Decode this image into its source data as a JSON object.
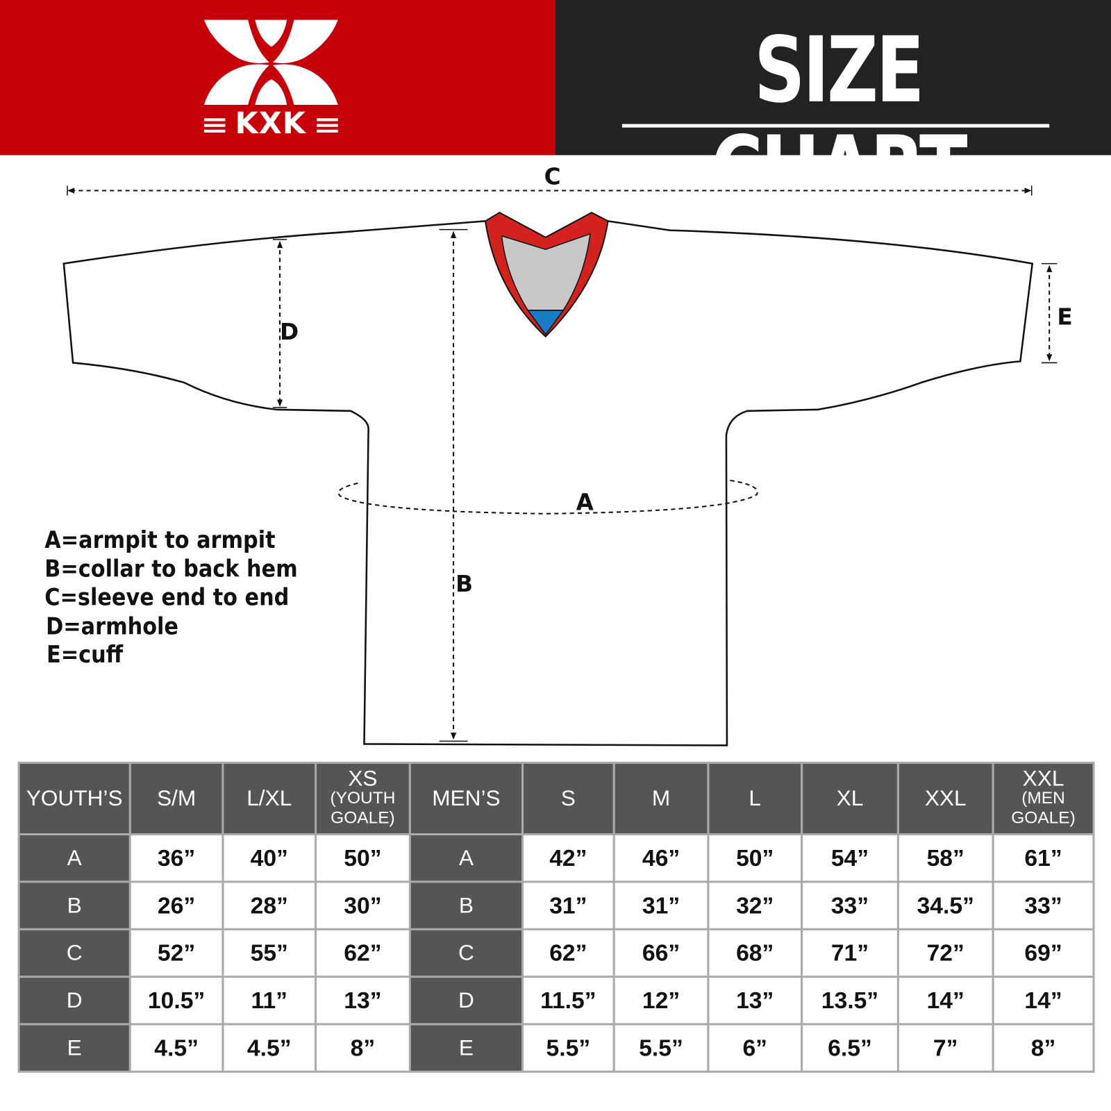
{
  "logo": {
    "text": "KXK"
  },
  "header": {
    "title": "SIZE CHART"
  },
  "colors": {
    "brand_red": "#c50008",
    "header_dark": "#222222",
    "table_header": "#555555",
    "collar_red": "#d4231f",
    "collar_gray": "#c8c8c8",
    "collar_blue": "#1a7cc4"
  },
  "diagram": {
    "labels": {
      "a": "A",
      "b": "B",
      "c": "C",
      "d": "D",
      "e": "E"
    }
  },
  "legend": [
    "A=armpit to armpit",
    "B=collar to back hem",
    "C=sleeve end to end",
    "D=armhole",
    "E=cuff"
  ],
  "table": {
    "headers": [
      {
        "main": "YOUTH’S",
        "sub": ""
      },
      {
        "main": "S/M",
        "sub": ""
      },
      {
        "main": "L/XL",
        "sub": ""
      },
      {
        "main": "XS",
        "sub": "(YOUTH GOALE)"
      },
      {
        "main": "MEN’S",
        "sub": ""
      },
      {
        "main": "S",
        "sub": ""
      },
      {
        "main": "M",
        "sub": ""
      },
      {
        "main": "L",
        "sub": ""
      },
      {
        "main": "XL",
        "sub": ""
      },
      {
        "main": "XXL",
        "sub": ""
      },
      {
        "main": "XXL",
        "sub": "(MEN GOALE)"
      }
    ],
    "rows": [
      [
        "A",
        "36”",
        "40”",
        "50”",
        "A",
        "42”",
        "46”",
        "50”",
        "54”",
        "58”",
        "61”"
      ],
      [
        "B",
        "26”",
        "28”",
        "30”",
        "B",
        "31”",
        "31”",
        "32”",
        "33”",
        "34.5”",
        "33”"
      ],
      [
        "C",
        "52”",
        "55”",
        "62”",
        "C",
        "62”",
        "66”",
        "68”",
        "71”",
        "72”",
        "69”"
      ],
      [
        "D",
        "10.5”",
        "11”",
        "13”",
        "D",
        "11.5”",
        "12”",
        "13”",
        "13.5”",
        "14”",
        "14”"
      ],
      [
        "E",
        "4.5”",
        "4.5”",
        "8”",
        "E",
        "5.5”",
        "5.5”",
        "6”",
        "6.5”",
        "7”",
        "8”"
      ]
    ]
  }
}
